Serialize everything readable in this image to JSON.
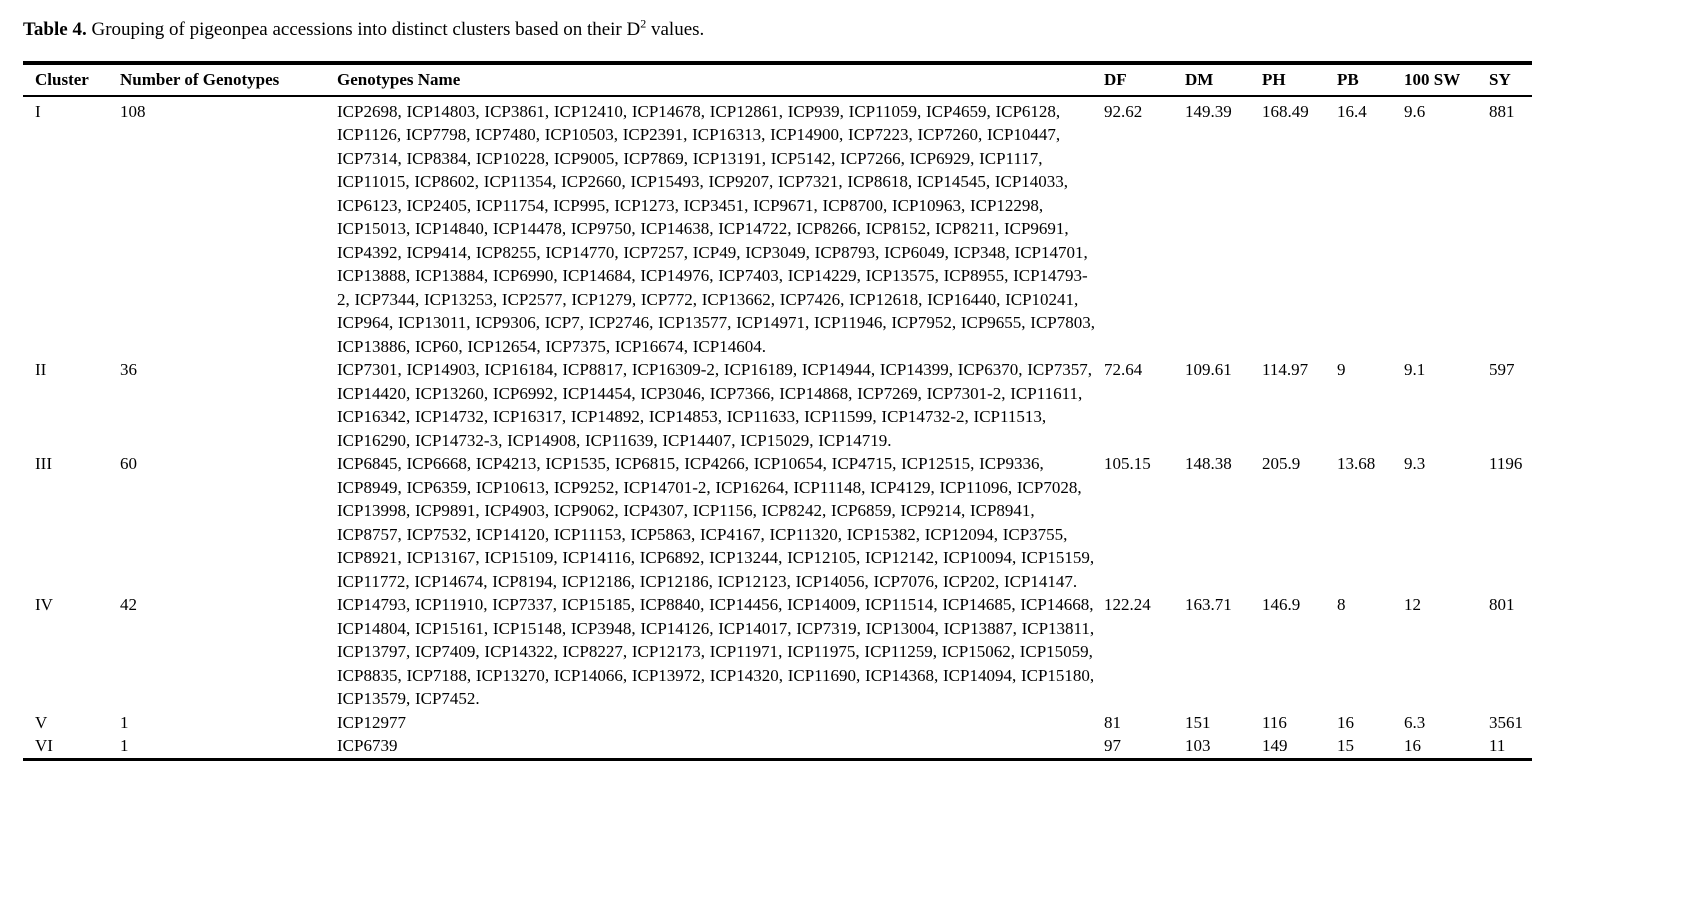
{
  "title": {
    "label": "Table 4.",
    "text_before_sup": " Grouping of pigeonpea accessions into distinct clusters based on their D",
    "sup": "2",
    "text_after_sup": " values."
  },
  "colors": {
    "text": "#000000",
    "background": "#ffffff",
    "rule": "#000000"
  },
  "table": {
    "columns": [
      "Cluster",
      "Number of Genotypes",
      "Genotypes Name",
      "DF",
      "DM",
      "PH",
      "PB",
      "100 SW",
      "SY"
    ],
    "rows": [
      {
        "cluster": "I",
        "count": "108",
        "genotypes": "ICP2698, ICP14803, ICP3861, ICP12410, ICP14678, ICP12861, ICP939, ICP11059, ICP4659, ICP6128, ICP1126, ICP7798, ICP7480, ICP10503, ICP2391, ICP16313, ICP14900, ICP7223, ICP7260, ICP10447, ICP7314, ICP8384, ICP10228, ICP9005, ICP7869, ICP13191, ICP5142, ICP7266, ICP6929, ICP1117, ICP11015, ICP8602, ICP11354, ICP2660, ICP15493, ICP9207, ICP7321, ICP8618, ICP14545, ICP14033, ICP6123, ICP2405, ICP11754, ICP995, ICP1273, ICP3451, ICP9671, ICP8700, ICP10963, ICP12298, ICP15013, ICP14840, ICP14478, ICP9750, ICP14638, ICP14722, ICP8266, ICP8152, ICP8211, ICP9691, ICP4392, ICP9414, ICP8255, ICP14770, ICP7257, ICP49, ICP3049, ICP8793, ICP6049, ICP348, ICP14701, ICP13888, ICP13884, ICP6990, ICP14684, ICP14976, ICP7403, ICP14229, ICP13575, ICP8955, ICP14793-2, ICP7344, ICP13253, ICP2577, ICP1279, ICP772, ICP13662, ICP7426, ICP12618, ICP16440, ICP10241, ICP964, ICP13011, ICP9306, ICP7, ICP2746, ICP13577, ICP14971, ICP11946, ICP7952, ICP9655, ICP7803, ICP13886, ICP60, ICP12654, ICP7375, ICP16674, ICP14604.",
        "df": "92.62",
        "dm": "149.39",
        "ph": "168.49",
        "pb": "16.4",
        "sw": "9.6",
        "sy": "881"
      },
      {
        "cluster": "II",
        "count": "36",
        "genotypes": "ICP7301, ICP14903, ICP16184, ICP8817, ICP16309-2, ICP16189, ICP14944, ICP14399, ICP6370, ICP7357, ICP14420, ICP13260, ICP6992, ICP14454, ICP3046, ICP7366, ICP14868, ICP7269, ICP7301-2, ICP11611, ICP16342, ICP14732, ICP16317, ICP14892, ICP14853, ICP11633, ICP11599, ICP14732-2, ICP11513, ICP16290, ICP14732-3, ICP14908, ICP11639, ICP14407, ICP15029, ICP14719.",
        "df": "72.64",
        "dm": "109.61",
        "ph": "114.97",
        "pb": "9",
        "sw": "9.1",
        "sy": "597"
      },
      {
        "cluster": "III",
        "count": "60",
        "genotypes": "ICP6845, ICP6668, ICP4213, ICP1535, ICP6815, ICP4266, ICP10654, ICP4715, ICP12515, ICP9336, ICP8949, ICP6359, ICP10613, ICP9252, ICP14701-2, ICP16264, ICP11148, ICP4129, ICP11096, ICP7028, ICP13998, ICP9891, ICP4903, ICP9062, ICP4307, ICP1156, ICP8242, ICP6859, ICP9214, ICP8941, ICP8757, ICP7532, ICP14120, ICP11153, ICP5863, ICP4167, ICP11320, ICP15382, ICP12094, ICP3755, ICP8921, ICP13167, ICP15109, ICP14116, ICP6892, ICP13244, ICP12105, ICP12142, ICP10094, ICP15159, ICP11772, ICP14674, ICP8194, ICP12186, ICP12186, ICP12123, ICP14056, ICP7076, ICP202, ICP14147.",
        "df": "105.15",
        "dm": "148.38",
        "ph": "205.9",
        "pb": "13.68",
        "sw": "9.3",
        "sy": "1196"
      },
      {
        "cluster": "IV",
        "count": "42",
        "genotypes": "ICP14793, ICP11910, ICP7337, ICP15185, ICP8840, ICP14456, ICP14009, ICP11514, ICP14685, ICP14668, ICP14804, ICP15161, ICP15148, ICP3948, ICP14126, ICP14017, ICP7319, ICP13004, ICP13887, ICP13811, ICP13797, ICP7409, ICP14322, ICP8227, ICP12173, ICP11971, ICP11975, ICP11259, ICP15062, ICP15059, ICP8835, ICP7188, ICP13270, ICP14066, ICP13972, ICP14320, ICP11690, ICP14368, ICP14094, ICP15180, ICP13579, ICP7452.",
        "df": "122.24",
        "dm": "163.71",
        "ph": "146.9",
        "pb": "8",
        "sw": "12",
        "sy": "801"
      },
      {
        "cluster": "V",
        "count": "1",
        "genotypes": "ICP12977",
        "df": "81",
        "dm": "151",
        "ph": "116",
        "pb": "16",
        "sw": "6.3",
        "sy": "3561"
      },
      {
        "cluster": "VI",
        "count": "1",
        "genotypes": "ICP6739",
        "df": "97",
        "dm": "103",
        "ph": "149",
        "pb": "15",
        "sw": "16",
        "sy": "11"
      }
    ]
  }
}
